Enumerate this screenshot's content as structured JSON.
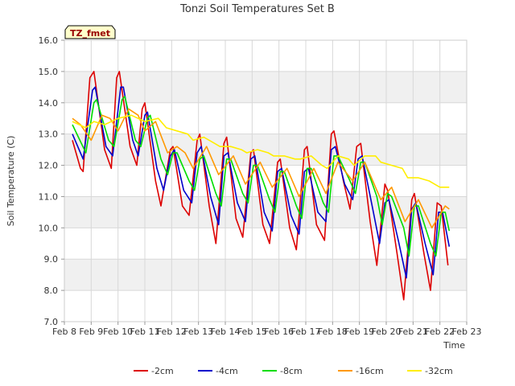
{
  "chart_data": {
    "type": "line",
    "title": "Tonzi Soil Temperatures Set B",
    "xlabel": "Time",
    "ylabel": "Soil Temperature (C)",
    "badge": "TZ_fmet",
    "xlim": [
      8,
      23
    ],
    "ylim": [
      7.0,
      16.0
    ],
    "x_ticks": [
      8,
      9,
      10,
      11,
      12,
      13,
      14,
      15,
      16,
      17,
      18,
      19,
      20,
      21,
      22,
      23
    ],
    "x_tick_labels": [
      "Feb 8",
      "Feb 9",
      "Feb 10",
      "Feb 11",
      "Feb 12",
      "Feb 13",
      "Feb 14",
      "Feb 15",
      "Feb 16",
      "Feb 17",
      "Feb 18",
      "Feb 19",
      "Feb 20",
      "Feb 21",
      "Feb 22",
      "Feb 23"
    ],
    "y_ticks": [
      7.0,
      8.0,
      9.0,
      10.0,
      11.0,
      12.0,
      13.0,
      14.0,
      15.0,
      16.0
    ],
    "y_tick_labels": [
      "7.0",
      "8.0",
      "9.0",
      "10.0",
      "11.0",
      "12.0",
      "13.0",
      "14.0",
      "15.0",
      "16.0"
    ],
    "grid": true,
    "legend_position": "bottom",
    "series": [
      {
        "name": "-2cm",
        "color": "#dd0000",
        "x": [
          8.3,
          8.6,
          8.7,
          8.95,
          9.1,
          9.5,
          9.75,
          9.95,
          10.05,
          10.45,
          10.7,
          10.9,
          11.0,
          11.4,
          11.6,
          11.95,
          12.05,
          12.4,
          12.65,
          12.95,
          13.05,
          13.4,
          13.65,
          13.95,
          14.05,
          14.4,
          14.65,
          14.95,
          15.05,
          15.4,
          15.65,
          15.95,
          16.05,
          16.4,
          16.65,
          16.95,
          17.05,
          17.4,
          17.7,
          17.95,
          18.05,
          18.4,
          18.65,
          18.9,
          19.05,
          19.4,
          19.65,
          19.95,
          20.05,
          20.4,
          20.65,
          20.95,
          21.05,
          21.4,
          21.65,
          21.9,
          22.05,
          22.3
        ],
        "y": [
          12.8,
          11.9,
          11.8,
          14.8,
          15.0,
          12.5,
          11.9,
          14.8,
          15.0,
          12.6,
          12.0,
          13.8,
          14.0,
          11.5,
          10.7,
          12.5,
          12.6,
          10.7,
          10.4,
          12.8,
          13.0,
          10.7,
          9.5,
          12.7,
          12.9,
          10.3,
          9.7,
          12.4,
          12.5,
          10.1,
          9.5,
          12.1,
          12.2,
          10.0,
          9.3,
          12.5,
          12.6,
          10.1,
          9.6,
          13.0,
          13.1,
          11.5,
          10.6,
          12.6,
          12.7,
          10.2,
          8.8,
          11.4,
          11.2,
          9.2,
          7.7,
          10.9,
          11.1,
          9.2,
          8.0,
          10.8,
          10.7,
          8.8
        ]
      },
      {
        "name": "-4cm",
        "color": "#0000cc",
        "x": [
          8.3,
          8.7,
          9.05,
          9.15,
          9.55,
          9.8,
          10.1,
          10.2,
          10.55,
          10.75,
          11.0,
          11.1,
          11.45,
          11.7,
          11.95,
          12.1,
          12.45,
          12.75,
          12.95,
          13.1,
          13.45,
          13.75,
          13.95,
          14.1,
          14.45,
          14.75,
          14.95,
          15.1,
          15.45,
          15.75,
          15.95,
          16.1,
          16.45,
          16.75,
          16.95,
          17.1,
          17.45,
          17.75,
          17.95,
          18.1,
          18.45,
          18.75,
          18.95,
          19.1,
          19.45,
          19.75,
          19.95,
          20.1,
          20.45,
          20.75,
          20.95,
          21.1,
          21.45,
          21.75,
          21.95,
          22.1,
          22.35
        ],
        "y": [
          13.0,
          12.2,
          14.4,
          14.5,
          12.6,
          12.3,
          14.5,
          14.5,
          12.8,
          12.3,
          13.6,
          13.7,
          11.9,
          11.2,
          12.3,
          12.5,
          11.2,
          10.8,
          12.4,
          12.6,
          11.0,
          10.1,
          12.3,
          12.4,
          10.8,
          10.2,
          12.2,
          12.3,
          10.5,
          9.9,
          11.8,
          11.9,
          10.4,
          9.8,
          11.8,
          11.9,
          10.5,
          10.2,
          12.5,
          12.6,
          11.4,
          10.9,
          12.2,
          12.3,
          10.8,
          9.5,
          10.8,
          10.9,
          9.6,
          8.4,
          10.6,
          10.8,
          9.5,
          8.5,
          10.5,
          10.5,
          9.4
        ]
      },
      {
        "name": "-8cm",
        "color": "#00dd00",
        "x": [
          8.3,
          8.8,
          9.1,
          9.2,
          9.65,
          9.85,
          10.15,
          10.25,
          10.65,
          10.85,
          11.1,
          11.2,
          11.6,
          11.85,
          12.05,
          12.2,
          12.65,
          12.85,
          13.05,
          13.2,
          13.65,
          13.85,
          14.05,
          14.2,
          14.65,
          14.85,
          15.05,
          15.2,
          15.65,
          15.85,
          16.05,
          16.2,
          16.65,
          16.85,
          17.05,
          17.2,
          17.65,
          17.85,
          18.05,
          18.2,
          18.65,
          18.85,
          19.05,
          19.2,
          19.65,
          19.85,
          20.05,
          20.2,
          20.65,
          20.85,
          21.05,
          21.2,
          21.65,
          21.85,
          22.05,
          22.2,
          22.35
        ],
        "y": [
          13.3,
          12.4,
          14.0,
          14.1,
          12.8,
          12.6,
          14.1,
          14.2,
          12.8,
          12.6,
          13.5,
          13.6,
          12.2,
          11.7,
          12.4,
          12.4,
          11.5,
          11.2,
          12.2,
          12.3,
          11.1,
          10.7,
          12.2,
          12.2,
          11.1,
          10.8,
          12.0,
          12.0,
          10.9,
          10.5,
          11.8,
          11.8,
          10.7,
          10.3,
          11.9,
          11.9,
          10.8,
          10.5,
          12.3,
          12.3,
          11.5,
          11.1,
          12.1,
          12.1,
          11.0,
          10.1,
          11.1,
          11.0,
          10.0,
          9.1,
          10.7,
          10.7,
          9.5,
          9.1,
          10.5,
          10.5,
          9.9
        ]
      },
      {
        "name": "-16cm",
        "color": "#ff9900",
        "x": [
          8.3,
          8.6,
          9.0,
          9.4,
          9.7,
          10.0,
          10.4,
          10.75,
          11.0,
          11.4,
          11.85,
          12.2,
          12.5,
          12.8,
          13.3,
          13.75,
          14.3,
          14.75,
          15.3,
          15.75,
          16.3,
          16.75,
          17.3,
          17.75,
          18.2,
          18.75,
          19.2,
          19.8,
          20.2,
          20.7,
          21.2,
          21.7,
          22.2,
          22.35
        ],
        "y": [
          13.5,
          13.3,
          12.8,
          13.6,
          13.5,
          13.1,
          13.8,
          13.6,
          13.1,
          13.4,
          12.4,
          12.6,
          12.4,
          11.9,
          12.6,
          11.7,
          12.3,
          11.4,
          12.1,
          11.3,
          11.9,
          11.0,
          11.9,
          11.1,
          12.1,
          11.5,
          12.1,
          10.9,
          11.3,
          10.2,
          10.9,
          10.0,
          10.7,
          10.6
        ]
      },
      {
        "name": "-32cm",
        "color": "#ffee00",
        "x": [
          8.3,
          8.8,
          9.1,
          9.5,
          10.0,
          10.5,
          11.0,
          11.5,
          11.8,
          12.2,
          12.6,
          12.8,
          13.2,
          13.6,
          13.8,
          14.2,
          14.6,
          14.8,
          15.2,
          15.6,
          15.8,
          16.2,
          16.6,
          16.8,
          17.2,
          17.6,
          17.8,
          18.2,
          18.6,
          18.8,
          19.2,
          19.6,
          19.8,
          20.2,
          20.6,
          20.8,
          21.2,
          21.6,
          21.8,
          22.0,
          22.35
        ],
        "y": [
          13.4,
          13.2,
          13.4,
          13.3,
          13.5,
          13.6,
          13.4,
          13.5,
          13.2,
          13.1,
          13.0,
          12.8,
          12.9,
          12.7,
          12.6,
          12.6,
          12.5,
          12.4,
          12.5,
          12.4,
          12.3,
          12.3,
          12.2,
          12.2,
          12.3,
          12.0,
          11.9,
          12.3,
          12.2,
          12.0,
          12.3,
          12.3,
          12.1,
          12.0,
          11.9,
          11.6,
          11.6,
          11.5,
          11.4,
          11.3,
          11.3
        ]
      }
    ]
  }
}
